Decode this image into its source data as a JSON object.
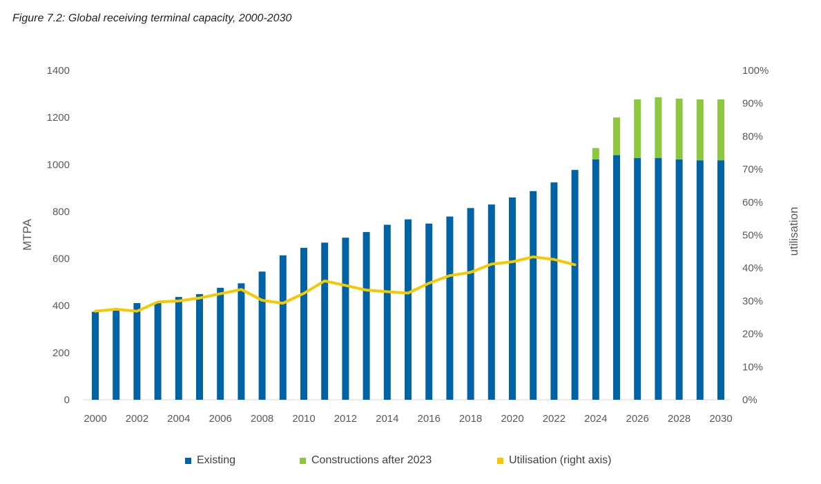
{
  "chart_data": {
    "type": "bar",
    "title": "Figure 7.2: Global receiving terminal capacity, 2000-2030",
    "ylabel": "MTPA",
    "y2label": "utilisation",
    "ylim": [
      0,
      1400
    ],
    "y2lim": [
      0,
      100
    ],
    "yticks": [
      "0",
      "200",
      "400",
      "600",
      "800",
      "1000",
      "1200",
      "1400"
    ],
    "y2ticks": [
      "0%",
      "10%",
      "20%",
      "30%",
      "40%",
      "50%",
      "60%",
      "70%",
      "80%",
      "90%",
      "100%"
    ],
    "x": [
      2000,
      2001,
      2002,
      2003,
      2004,
      2005,
      2006,
      2007,
      2008,
      2009,
      2010,
      2011,
      2012,
      2013,
      2014,
      2015,
      2016,
      2017,
      2018,
      2019,
      2020,
      2021,
      2022,
      2023,
      2024,
      2025,
      2026,
      2027,
      2028,
      2029,
      2030
    ],
    "xticks": [
      "2000",
      "2002",
      "2004",
      "2006",
      "2008",
      "2010",
      "2012",
      "2014",
      "2016",
      "2018",
      "2020",
      "2022",
      "2024",
      "2026",
      "2028",
      "2030"
    ],
    "legend_position": "bottom",
    "colors": {
      "existing": "#0063A6",
      "constructions": "#8DC63F",
      "utilisation": "#F5C800"
    },
    "series": [
      {
        "name": "Existing",
        "type": "bar",
        "values": [
          374,
          383,
          411,
          413,
          437,
          449,
          476,
          495,
          545,
          614,
          646,
          668,
          689,
          713,
          744,
          767,
          749,
          779,
          815,
          830,
          860,
          887,
          924,
          977,
          1022,
          1040,
          1028,
          1028,
          1022,
          1018,
          1018
        ]
      },
      {
        "name": "Constructions after 2023",
        "type": "bar-stacked",
        "values": [
          0,
          0,
          0,
          0,
          0,
          0,
          0,
          0,
          0,
          0,
          0,
          0,
          0,
          0,
          0,
          0,
          0,
          0,
          0,
          0,
          0,
          0,
          0,
          0,
          48,
          160,
          249,
          258,
          258,
          259,
          259
        ]
      },
      {
        "name": "Utilisation (right axis)",
        "type": "line",
        "axis": "right",
        "values": [
          26.9,
          27.5,
          26.9,
          29.7,
          30.0,
          30.9,
          32.2,
          33.5,
          30.2,
          29.3,
          32.3,
          36.1,
          34.7,
          33.3,
          32.8,
          32.4,
          35.4,
          37.7,
          38.7,
          41.2,
          41.9,
          43.4,
          42.6,
          41.0,
          null,
          null,
          null,
          null,
          null,
          null,
          null
        ]
      }
    ]
  }
}
